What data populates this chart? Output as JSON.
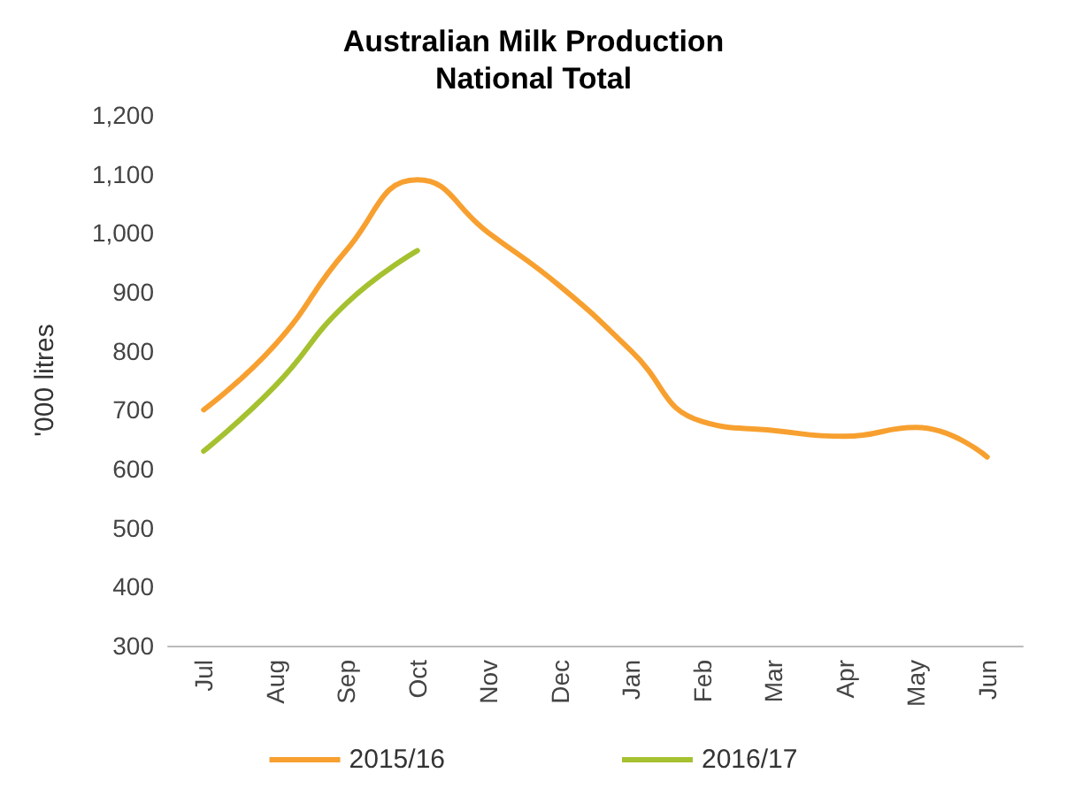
{
  "chart_data": {
    "type": "line",
    "title": "Australian Milk Production\nNational Total",
    "ylabel": "'000 litres",
    "categories": [
      "Jul",
      "Aug",
      "Sep",
      "Oct",
      "Nov",
      "Dec",
      "Jan",
      "Feb",
      "Mar",
      "Apr",
      "May",
      "Jun"
    ],
    "series": [
      {
        "name": "2015/16",
        "color": "#f7a030",
        "values": [
          700,
          810,
          970,
          1090,
          1000,
          910,
          800,
          680,
          665,
          655,
          670,
          620
        ]
      },
      {
        "name": "2016/17",
        "color": "#a5c130",
        "values": [
          630,
          740,
          880,
          970,
          null,
          null,
          null,
          null,
          null,
          null,
          null,
          null
        ]
      }
    ],
    "ylim": [
      300,
      1200
    ],
    "yticks": [
      {
        "value": 300,
        "label": "300"
      },
      {
        "value": 400,
        "label": "400"
      },
      {
        "value": 500,
        "label": "500"
      },
      {
        "value": 600,
        "label": "600"
      },
      {
        "value": 700,
        "label": "700"
      },
      {
        "value": 800,
        "label": "800"
      },
      {
        "value": 900,
        "label": "900"
      },
      {
        "value": 1000,
        "label": "1,000"
      },
      {
        "value": 1100,
        "label": "1,100"
      },
      {
        "value": 1200,
        "label": "1,200"
      }
    ],
    "grid": false,
    "legend": "bottom",
    "marker": "none",
    "line_style": "solid"
  }
}
